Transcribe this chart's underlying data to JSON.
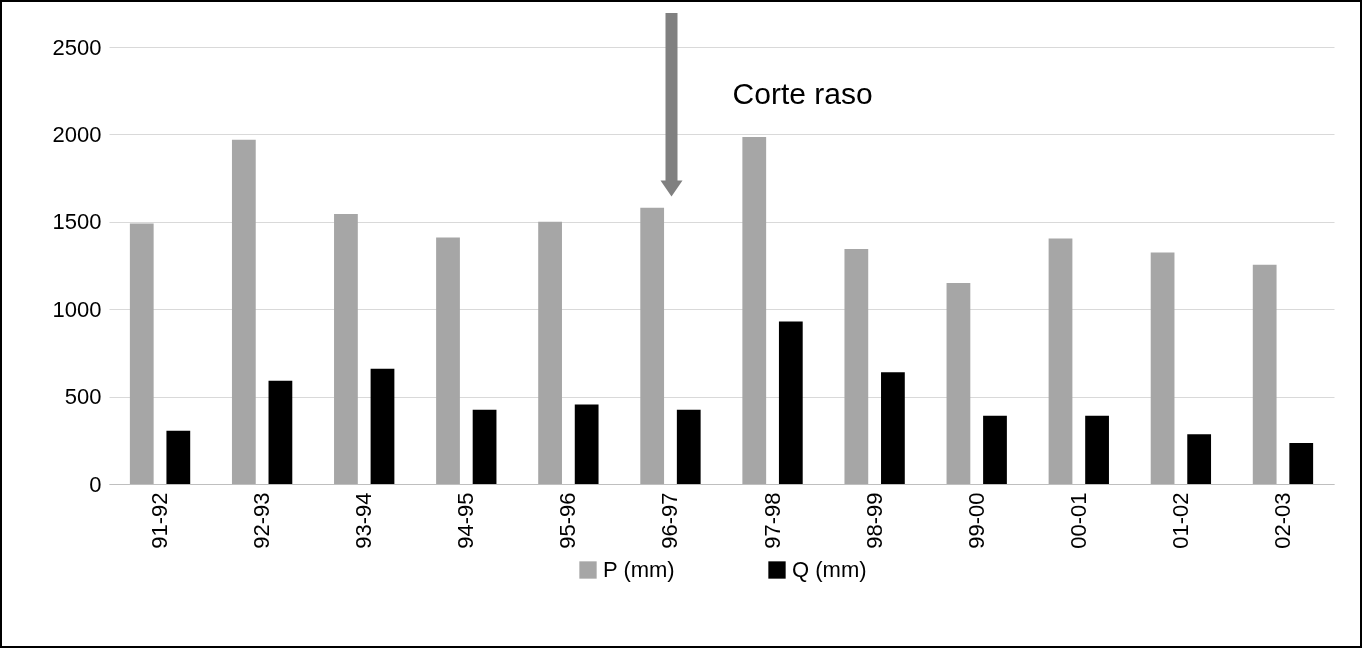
{
  "chart_data": {
    "type": "bar",
    "categories": [
      "91-92",
      "92-93",
      "93-94",
      "94-95",
      "95-96",
      "96-97",
      "97-98",
      "98-99",
      "99-00",
      "00-01",
      "01-02",
      "02-03"
    ],
    "series": [
      {
        "name": "P (mm)",
        "color": "#a6a6a6",
        "values": [
          1490,
          1970,
          1545,
          1410,
          1500,
          1580,
          1985,
          1345,
          1150,
          1405,
          1325,
          1255
        ]
      },
      {
        "name": "Q (mm)",
        "color": "#000000",
        "values": [
          305,
          590,
          660,
          425,
          455,
          425,
          930,
          640,
          390,
          390,
          285,
          235
        ]
      }
    ],
    "ylim": [
      0,
      2500
    ],
    "yticks": [
      0,
      500,
      1000,
      1500,
      2000,
      2500
    ],
    "grid": "y",
    "legend": "bottom",
    "annotations": [
      "Corte raso"
    ]
  }
}
